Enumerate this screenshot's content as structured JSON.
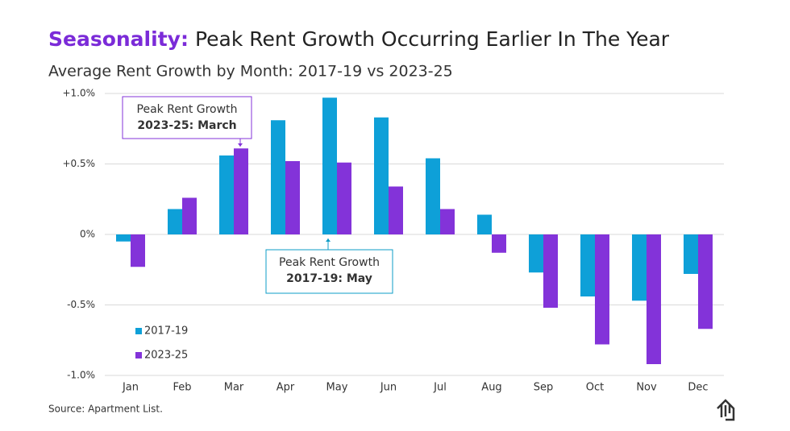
{
  "chart_data": {
    "type": "bar",
    "title_highlight": "Seasonality:",
    "title": "Peak Rent Growth Occurring Earlier In The Year",
    "subtitle": "Average Rent Growth by Month: 2017-19 vs 2023-25",
    "source": "Source: Apartment List.",
    "categories": [
      "Jan",
      "Feb",
      "Mar",
      "Apr",
      "May",
      "Jun",
      "Jul",
      "Aug",
      "Sep",
      "Oct",
      "Nov",
      "Dec"
    ],
    "series": [
      {
        "name": "2017-19",
        "color": "#0ea0d8",
        "values": [
          -0.05,
          0.18,
          0.56,
          0.81,
          0.97,
          0.83,
          0.54,
          0.14,
          -0.27,
          -0.44,
          -0.47,
          -0.28
        ]
      },
      {
        "name": "2023-25",
        "color": "#8333d9",
        "values": [
          -0.23,
          0.26,
          0.61,
          0.52,
          0.51,
          0.34,
          0.18,
          -0.13,
          -0.52,
          -0.78,
          -0.92,
          -0.67
        ]
      }
    ],
    "ylim": [
      -1.0,
      1.0
    ],
    "yticks": [
      {
        "value": 1.0,
        "label": "+1.0%"
      },
      {
        "value": 0.5,
        "label": "+0.5%"
      },
      {
        "value": 0,
        "label": "0%"
      },
      {
        "value": -0.5,
        "label": "-0.5%"
      },
      {
        "value": -1.0,
        "label": "-1.0%"
      }
    ],
    "grid": true,
    "legend": "lower left",
    "annotations": [
      {
        "lines": [
          "Peak Rent Growth",
          "2023-25: March"
        ],
        "color": "#8333d9"
      },
      {
        "lines": [
          "Peak Rent Growth",
          "2017-19: May"
        ],
        "color": "#0e9cc7"
      }
    ]
  }
}
